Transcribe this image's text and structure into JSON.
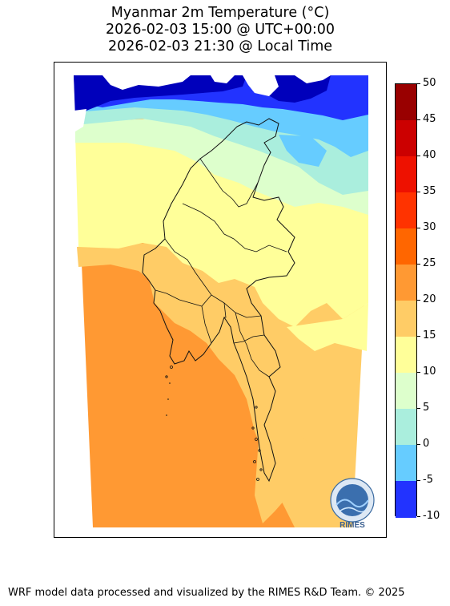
{
  "title": {
    "line1": "Myanmar 2m Temperature (°C)",
    "line2": "2026-02-03 15:00 @ UTC+00:00",
    "line3": "2026-02-03 21:30 @ Local Time"
  },
  "colorbar": {
    "levels": [
      {
        "label": "50",
        "color": "#990000"
      },
      {
        "label": "45",
        "color": "#cc0000"
      },
      {
        "label": "40",
        "color": "#ee1100"
      },
      {
        "label": "35",
        "color": "#ff3300"
      },
      {
        "label": "30",
        "color": "#ff6600"
      },
      {
        "label": "25",
        "color": "#ff9933"
      },
      {
        "label": "20",
        "color": "#ffcc66"
      },
      {
        "label": "15",
        "color": "#ffff99"
      },
      {
        "label": "10",
        "color": "#ddffcc"
      },
      {
        "label": "5",
        "color": "#aaeedd"
      },
      {
        "label": "0",
        "color": "#66ccff"
      },
      {
        "label": "-5",
        "color": "#2233ff"
      },
      {
        "label": "-10",
        "color": "#0000bb"
      }
    ]
  },
  "colors": {
    "deep_orange": "#ff9933",
    "light_orange": "#ffcc66",
    "pale_yellow": "#ffff99",
    "pale_green": "#ddffcc",
    "aqua": "#aaeedd",
    "sky_blue": "#66ccff",
    "blue": "#2233ff",
    "dark_blue": "#0000bb"
  },
  "logo": {
    "text": "RIMES"
  },
  "footer": {
    "text": "WRF model data processed and visualized by the RIMES R&D Team. © 2025"
  }
}
